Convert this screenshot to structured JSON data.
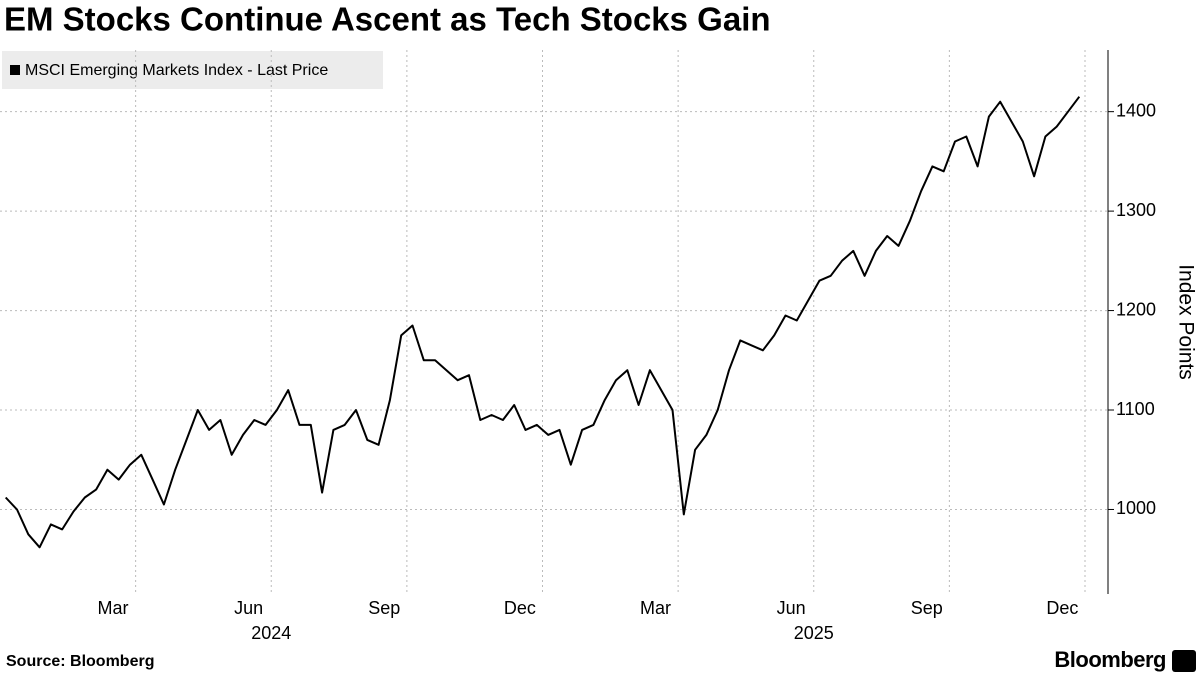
{
  "chart_data": {
    "type": "line",
    "title": "EM Stocks Continue Ascent as Tech Stocks Gain",
    "y_axis_label": "Index Points",
    "source": "Source: Bloomberg",
    "brand": "Bloomberg",
    "x": [
      "2024-01",
      "2024-01",
      "2024-01",
      "2024-01",
      "2024-02",
      "2024-02",
      "2024-02",
      "2024-02",
      "2024-03",
      "2024-03",
      "2024-03",
      "2024-03",
      "2024-04",
      "2024-04",
      "2024-04",
      "2024-04",
      "2024-05",
      "2024-05",
      "2024-05",
      "2024-05",
      "2024-06",
      "2024-06",
      "2024-06",
      "2024-06",
      "2024-07",
      "2024-07",
      "2024-07",
      "2024-07",
      "2024-08",
      "2024-08",
      "2024-08",
      "2024-08",
      "2024-09",
      "2024-09",
      "2024-09",
      "2024-09",
      "2024-10",
      "2024-10",
      "2024-10",
      "2024-10",
      "2024-11",
      "2024-11",
      "2024-11",
      "2024-11",
      "2024-12",
      "2024-12",
      "2024-12",
      "2024-12",
      "2025-01",
      "2025-01",
      "2025-01",
      "2025-01",
      "2025-02",
      "2025-02",
      "2025-02",
      "2025-02",
      "2025-03",
      "2025-03",
      "2025-03",
      "2025-03",
      "2025-04",
      "2025-04",
      "2025-04",
      "2025-04",
      "2025-05",
      "2025-05",
      "2025-05",
      "2025-05",
      "2025-06",
      "2025-06",
      "2025-06",
      "2025-06",
      "2025-07",
      "2025-07",
      "2025-07",
      "2025-07",
      "2025-08",
      "2025-08",
      "2025-08",
      "2025-08",
      "2025-09",
      "2025-09",
      "2025-09",
      "2025-09",
      "2025-10",
      "2025-10",
      "2025-10",
      "2025-10",
      "2025-11",
      "2025-11",
      "2025-11",
      "2025-11",
      "2025-12",
      "2025-12",
      "2025-12",
      "2025-12"
    ],
    "series": [
      {
        "name": "MSCI Emerging Markets Index - Last Price",
        "color": "#000000",
        "values": [
          1012,
          1000,
          975,
          962,
          985,
          980,
          998,
          1012,
          1020,
          1040,
          1030,
          1045,
          1055,
          1030,
          1005,
          1040,
          1070,
          1100,
          1080,
          1090,
          1055,
          1075,
          1090,
          1085,
          1100,
          1120,
          1085,
          1085,
          1017,
          1080,
          1085,
          1100,
          1070,
          1065,
          1110,
          1175,
          1185,
          1150,
          1150,
          1140,
          1130,
          1135,
          1090,
          1095,
          1090,
          1105,
          1080,
          1085,
          1075,
          1080,
          1045,
          1080,
          1085,
          1110,
          1130,
          1140,
          1105,
          1140,
          1120,
          1100,
          995,
          1060,
          1075,
          1100,
          1140,
          1170,
          1165,
          1160,
          1175,
          1195,
          1190,
          1210,
          1230,
          1235,
          1250,
          1260,
          1235,
          1260,
          1275,
          1265,
          1290,
          1320,
          1345,
          1340,
          1370,
          1375,
          1345,
          1395,
          1410,
          1390,
          1370,
          1335,
          1375,
          1385,
          1400,
          1415
        ]
      }
    ],
    "ylim": [
      915,
      1462
    ],
    "yticks": [
      1000,
      1100,
      1200,
      1300,
      1400
    ],
    "xticks": [
      {
        "value": "2024-03",
        "label": "Mar"
      },
      {
        "value": "2024-06",
        "label": "Jun"
      },
      {
        "value": "2024-09",
        "label": "Sep"
      },
      {
        "value": "2024-12",
        "label": "Dec"
      },
      {
        "value": "2025-03",
        "label": "Mar"
      },
      {
        "value": "2025-06",
        "label": "Jun"
      },
      {
        "value": "2025-09",
        "label": "Sep"
      },
      {
        "value": "2025-12",
        "label": "Dec"
      }
    ],
    "years": [
      "2024",
      "2025"
    ],
    "grid": true
  }
}
